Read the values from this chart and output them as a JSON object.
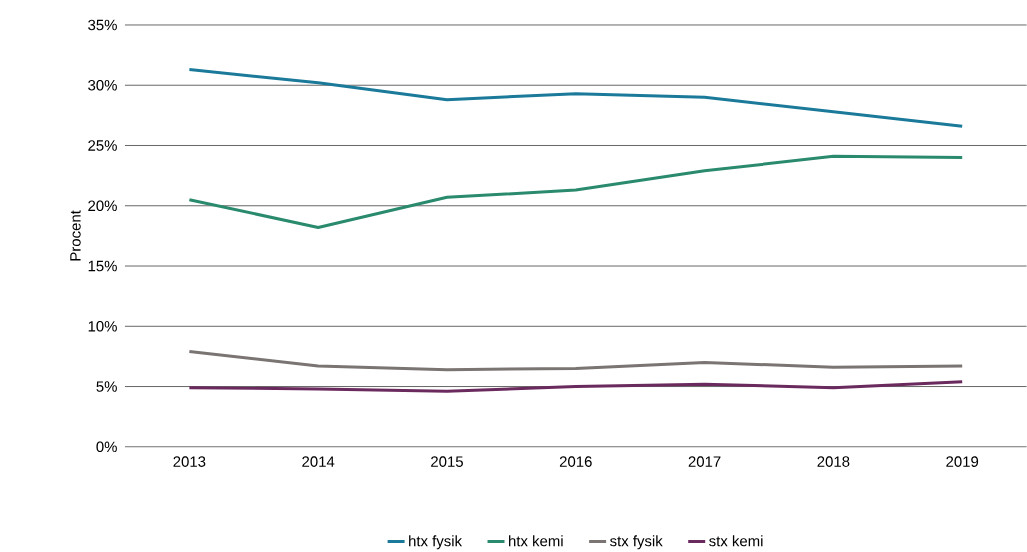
{
  "chart_data": {
    "type": "line",
    "ylabel": "Procent",
    "categories": [
      "2013",
      "2014",
      "2015",
      "2016",
      "2017",
      "2018",
      "2019"
    ],
    "series": [
      {
        "name": "htx fysik",
        "color": "#1b7a9a",
        "values": [
          31.3,
          30.2,
          28.8,
          29.3,
          29.0,
          27.8,
          26.6
        ]
      },
      {
        "name": "htx kemi",
        "color": "#2a8a6e",
        "values": [
          20.5,
          18.2,
          20.7,
          21.3,
          22.9,
          24.1,
          24.0
        ]
      },
      {
        "name": "stx fysik",
        "color": "#7a7472",
        "values": [
          7.9,
          6.7,
          6.4,
          6.5,
          7.0,
          6.6,
          6.7
        ]
      },
      {
        "name": "stx kemi",
        "color": "#6b2a5e",
        "values": [
          4.9,
          4.8,
          4.6,
          5.0,
          5.2,
          4.9,
          5.4
        ]
      }
    ],
    "ylim": [
      0,
      35
    ],
    "yticks": [
      {
        "value": 0,
        "label": "0%"
      },
      {
        "value": 5,
        "label": "5%"
      },
      {
        "value": 10,
        "label": "10%"
      },
      {
        "value": 15,
        "label": "15%"
      },
      {
        "value": 20,
        "label": "20%"
      },
      {
        "value": 25,
        "label": "25%"
      },
      {
        "value": 30,
        "label": "30%"
      },
      {
        "value": 35,
        "label": "35%"
      }
    ],
    "grid": "y",
    "legend": "bottom",
    "marker": "none",
    "line_style": "solid"
  }
}
